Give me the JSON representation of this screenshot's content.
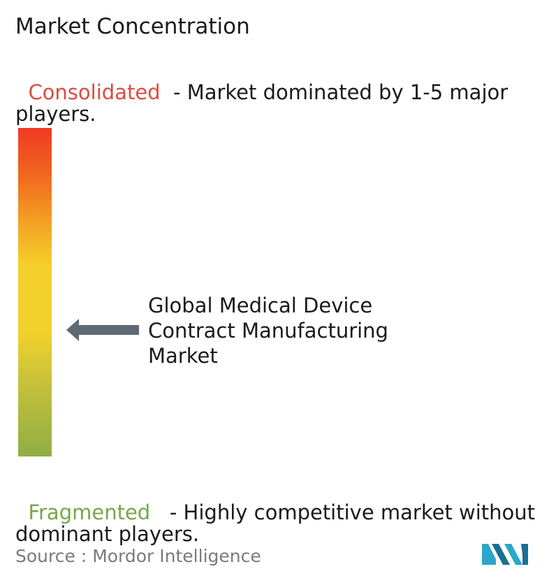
{
  "title": "Market Concentration",
  "consolidated": {
    "label": "Consolidated",
    "description": "  - Market dominated by 1-5 major players.",
    "color": "#e04a3f"
  },
  "fragmented": {
    "label": "Fragmented",
    "description": "   - Highly competitive market without dominant players.",
    "color": "#76a74a"
  },
  "market_name": "Global Medical Device Contract Manufacturing Market",
  "scale_position": 0.62,
  "arrow_color": "#5f6975",
  "source": {
    "prefix": "Source : ",
    "name": "Mordor Intelligence"
  },
  "logo": {
    "icon": "mordor-intelligence-logo",
    "colors": [
      "#2aa7c9",
      "#1b6f94"
    ]
  }
}
